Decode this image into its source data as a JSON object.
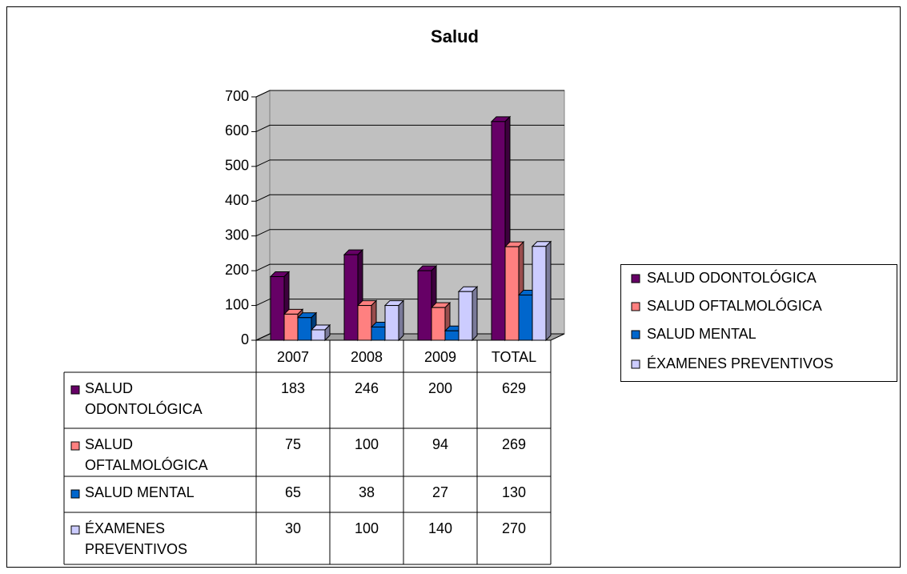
{
  "chart_data": {
    "type": "bar",
    "title": "Salud",
    "categories": [
      "2007",
      "2008",
      "2009",
      "TOTAL"
    ],
    "series": [
      {
        "name": "SALUD ODONTOLÓGICA",
        "color": "#660066",
        "values": [
          183,
          246,
          200,
          629
        ]
      },
      {
        "name": "SALUD OFTALMOLÓGICA",
        "color": "#ff8080",
        "values": [
          75,
          100,
          94,
          269
        ]
      },
      {
        "name": "SALUD MENTAL",
        "color": "#0066cc",
        "values": [
          65,
          38,
          27,
          130
        ]
      },
      {
        "name": "ÉXAMENES PREVENTIVOS",
        "color": "#ccccff",
        "values": [
          30,
          100,
          140,
          270
        ]
      }
    ],
    "ylim": [
      0,
      700
    ],
    "yticks": [
      0,
      100,
      200,
      300,
      400,
      500,
      600,
      700
    ],
    "grid": true,
    "legend": "right"
  }
}
